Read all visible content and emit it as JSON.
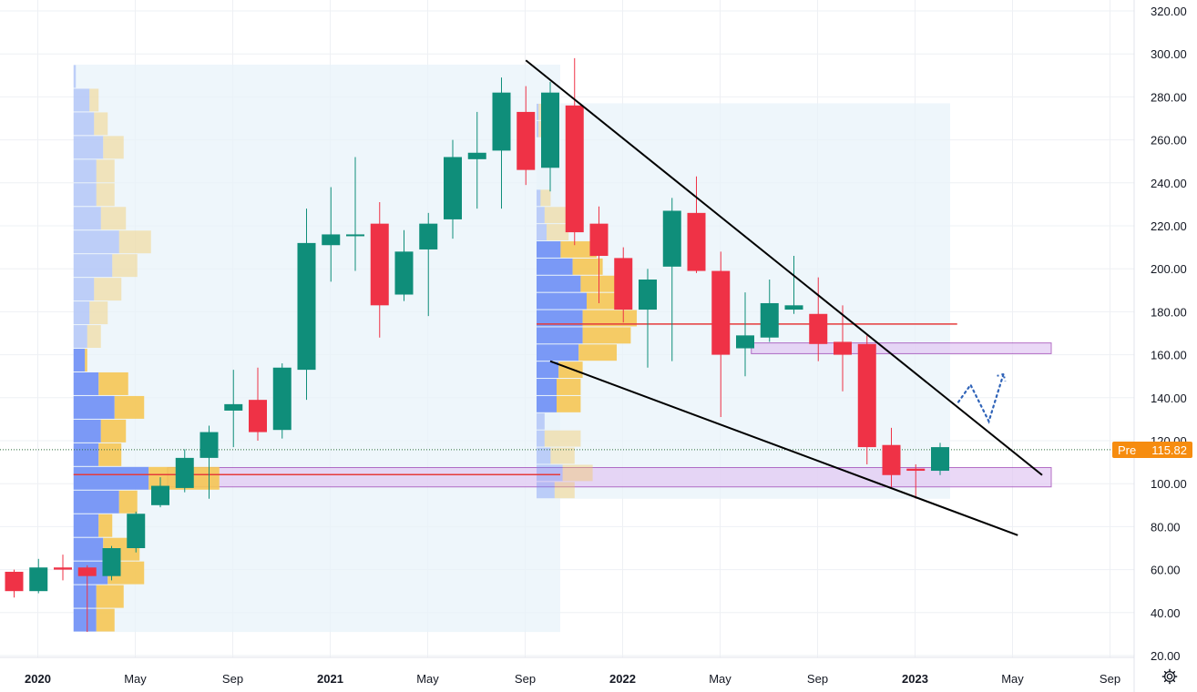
{
  "chart_data": {
    "type": "candlestick",
    "y_axis": {
      "position": "right",
      "ylim": [
        20,
        320
      ],
      "ticks": [
        "20.00",
        "40.00",
        "60.00",
        "80.00",
        "100.00",
        "120.00",
        "140.00",
        "160.00",
        "180.00",
        "200.00",
        "220.00",
        "240.00",
        "260.00",
        "280.00",
        "300.00",
        "320.00"
      ]
    },
    "x_axis": {
      "ticks": [
        {
          "label": "2020",
          "date": "2020-01",
          "year": true
        },
        {
          "label": "May",
          "date": "2020-05",
          "year": false
        },
        {
          "label": "Sep",
          "date": "2020-09",
          "year": false
        },
        {
          "label": "2021",
          "date": "2021-01",
          "year": true
        },
        {
          "label": "May",
          "date": "2021-05",
          "year": false
        },
        {
          "label": "Sep",
          "date": "2021-09",
          "year": false
        },
        {
          "label": "2022",
          "date": "2022-01",
          "year": true
        },
        {
          "label": "May",
          "date": "2022-05",
          "year": false
        },
        {
          "label": "Sep",
          "date": "2022-09",
          "year": false
        },
        {
          "label": "2023",
          "date": "2023-01",
          "year": true
        },
        {
          "label": "May",
          "date": "2023-05",
          "year": false
        },
        {
          "label": "Sep",
          "date": "2023-09",
          "year": false
        }
      ]
    },
    "candles": [
      {
        "date": "2020-01",
        "open": 59,
        "high": 60,
        "low": 47,
        "close": 50
      },
      {
        "date": "2020-02",
        "open": 50,
        "high": 65,
        "low": 49,
        "close": 61
      },
      {
        "date": "2020-03",
        "open": 61,
        "high": 67,
        "low": 55,
        "close": 60
      },
      {
        "date": "2020-04",
        "open": 61,
        "high": 62,
        "low": 31,
        "close": 57
      },
      {
        "date": "2020-05",
        "open": 57,
        "high": 71,
        "low": 55,
        "close": 70
      },
      {
        "date": "2020-06",
        "open": 70,
        "high": 87,
        "low": 68,
        "close": 86
      },
      {
        "date": "2020-07",
        "open": 90,
        "high": 103,
        "low": 89,
        "close": 99
      },
      {
        "date": "2020-08",
        "open": 98,
        "high": 116,
        "low": 96,
        "close": 112
      },
      {
        "date": "2020-09",
        "open": 112,
        "high": 127,
        "low": 93,
        "close": 124
      },
      {
        "date": "2020-10",
        "open": 134,
        "high": 153,
        "low": 117,
        "close": 137
      },
      {
        "date": "2020-11",
        "open": 139,
        "high": 154,
        "low": 120,
        "close": 124
      },
      {
        "date": "2020-12",
        "open": 125,
        "high": 156,
        "low": 121,
        "close": 154
      },
      {
        "date": "2021-01",
        "open": 153,
        "high": 228,
        "low": 139,
        "close": 212
      },
      {
        "date": "2021-02",
        "open": 211,
        "high": 238,
        "low": 194,
        "close": 216
      },
      {
        "date": "2021-03",
        "open": 216,
        "high": 252,
        "low": 199,
        "close": 216
      },
      {
        "date": "2021-04",
        "open": 221,
        "high": 231,
        "low": 168,
        "close": 183
      },
      {
        "date": "2021-05",
        "open": 188,
        "high": 218,
        "low": 185,
        "close": 208
      },
      {
        "date": "2021-06",
        "open": 209,
        "high": 226,
        "low": 178,
        "close": 221
      },
      {
        "date": "2021-07",
        "open": 223,
        "high": 260,
        "low": 214,
        "close": 252
      },
      {
        "date": "2021-08",
        "open": 251,
        "high": 273,
        "low": 228,
        "close": 254
      },
      {
        "date": "2021-09",
        "open": 255,
        "high": 289,
        "low": 228,
        "close": 282
      },
      {
        "date": "2021-10",
        "open": 273,
        "high": 285,
        "low": 239,
        "close": 246
      },
      {
        "date": "2021-11",
        "open": 247,
        "high": 287,
        "low": 236,
        "close": 282
      },
      {
        "date": "2021-12",
        "open": 276,
        "high": 298,
        "low": 211,
        "close": 217
      },
      {
        "date": "2022-01",
        "open": 221,
        "high": 229,
        "low": 184,
        "close": 206
      },
      {
        "date": "2022-02",
        "open": 205,
        "high": 210,
        "low": 175,
        "close": 181
      },
      {
        "date": "2022-03",
        "open": 181,
        "high": 200,
        "low": 154,
        "close": 195
      },
      {
        "date": "2022-04",
        "open": 201,
        "high": 233,
        "low": 157,
        "close": 227
      },
      {
        "date": "2022-05",
        "open": 226,
        "high": 243,
        "low": 198,
        "close": 199
      },
      {
        "date": "2022-06",
        "open": 199,
        "high": 208,
        "low": 131,
        "close": 160
      },
      {
        "date": "2022-07",
        "open": 163,
        "high": 189,
        "low": 150,
        "close": 169
      },
      {
        "date": "2022-08",
        "open": 168,
        "high": 195,
        "low": 166,
        "close": 184
      },
      {
        "date": "2022-09",
        "open": 181,
        "high": 206,
        "low": 179,
        "close": 183
      },
      {
        "date": "2022-10",
        "open": 179,
        "high": 196,
        "low": 157,
        "close": 165
      },
      {
        "date": "2022-11",
        "open": 166,
        "high": 183,
        "low": 143,
        "close": 160
      },
      {
        "date": "2022-12",
        "open": 165,
        "high": 169,
        "low": 109,
        "close": 117
      },
      {
        "date": "2023-01",
        "open": 118,
        "high": 126,
        "low": 98,
        "close": 104
      },
      {
        "date": "2023-02",
        "open": 107,
        "high": 109,
        "low": 93,
        "close": 106
      },
      {
        "date": "2023-03",
        "open": 106,
        "high": 119,
        "low": 104,
        "close": 117
      }
    ],
    "current_price": {
      "label": "Pre",
      "value": "115.82",
      "level": 115.82
    },
    "colors": {
      "up": "#0f8e7a",
      "down": "#ef3246",
      "up_profile": "#6e8ff5",
      "down_profile": "#f5c654",
      "range_bg": "#e8f3fa",
      "zone_fill": "#e3cbf3",
      "zone_border": "#9b3fb3",
      "poc": "#e53b3b",
      "trendline": "#000000",
      "projection": "#2f63b8",
      "price_tag": "#f68c0f",
      "grid": "#eef0f4"
    },
    "overlays": {
      "horizontal_zones": [
        {
          "low": 98.5,
          "high": 107.5
        },
        {
          "low": 160.5,
          "high": 165.5
        }
      ],
      "poc_lines": [
        {
          "price": 104.2,
          "from": "2020-04",
          "to": "2021-11"
        },
        {
          "price": 174.3,
          "from": "2021-11",
          "to": "2023-03"
        }
      ],
      "trendlines": [
        {
          "start": {
            "date": "2021-10",
            "price": 297
          },
          "end": {
            "date": "2023-07",
            "price": 104
          }
        },
        {
          "start": {
            "date": "2021-11",
            "price": 157
          },
          "end": {
            "date": "2023-06",
            "price": 76
          }
        }
      ],
      "projection_path": [
        {
          "date": "2023-03.75",
          "price": 138
        },
        {
          "date": "2023-04.25",
          "price": 146
        },
        {
          "date": "2023-05",
          "price": 129
        },
        {
          "date": "2023-05.6",
          "price": 151
        }
      ],
      "volume_profiles": [
        {
          "from": "2020-04",
          "to": "2021-11",
          "bins": [
            {
              "low": 31,
              "high": 42,
              "up": 1.0,
              "down": 0.8
            },
            {
              "low": 42,
              "high": 53,
              "up": 1.0,
              "down": 1.2
            },
            {
              "low": 53,
              "high": 64,
              "up": 1.5,
              "down": 1.6
            },
            {
              "low": 64,
              "high": 75,
              "up": 1.3,
              "down": 1.6
            },
            {
              "low": 75,
              "high": 86,
              "up": 1.1,
              "down": 0.6
            },
            {
              "low": 86,
              "high": 97,
              "up": 2.0,
              "down": 0.8
            },
            {
              "low": 97,
              "high": 108,
              "up": 3.3,
              "down": 3.1
            },
            {
              "low": 108,
              "high": 119,
              "up": 1.1,
              "down": 1.0
            },
            {
              "low": 119,
              "high": 130,
              "up": 1.2,
              "down": 1.1
            },
            {
              "low": 130,
              "high": 141,
              "up": 1.8,
              "down": 1.3
            },
            {
              "low": 141,
              "high": 152,
              "up": 1.1,
              "down": 1.3
            },
            {
              "low": 152,
              "high": 163,
              "up": 0.5,
              "down": 0.1
            },
            {
              "low": 163,
              "high": 174,
              "up": 0.6,
              "down": 0.6
            },
            {
              "low": 174,
              "high": 185,
              "up": 0.7,
              "down": 0.8
            },
            {
              "low": 185,
              "high": 196,
              "up": 0.9,
              "down": 1.2
            },
            {
              "low": 196,
              "high": 207,
              "up": 1.7,
              "down": 1.1
            },
            {
              "low": 207,
              "high": 218,
              "up": 2.0,
              "down": 1.4
            },
            {
              "low": 218,
              "high": 229,
              "up": 1.2,
              "down": 1.1
            },
            {
              "low": 229,
              "high": 240,
              "up": 1.0,
              "down": 0.8
            },
            {
              "low": 240,
              "high": 251,
              "up": 1.0,
              "down": 0.8
            },
            {
              "low": 251,
              "high": 262,
              "up": 1.3,
              "down": 0.9
            },
            {
              "low": 262,
              "high": 273,
              "up": 0.9,
              "down": 0.6
            },
            {
              "low": 273,
              "high": 284,
              "up": 0.7,
              "down": 0.4
            },
            {
              "low": 284,
              "high": 295,
              "up": 0.1,
              "down": 0.0
            }
          ]
        },
        {
          "from": "2021-11",
          "to": "2023-03",
          "bins": [
            {
              "low": 93,
              "high": 101,
              "up": 0.9,
              "down": 1.0
            },
            {
              "low": 101,
              "high": 109,
              "up": 1.3,
              "down": 1.5
            },
            {
              "low": 109,
              "high": 117,
              "up": 0.7,
              "down": 1.2
            },
            {
              "low": 117,
              "high": 125,
              "up": 0.4,
              "down": 1.8
            },
            {
              "low": 125,
              "high": 133,
              "up": 0.4,
              "down": 0.0
            },
            {
              "low": 133,
              "high": 141,
              "up": 1.0,
              "down": 1.2
            },
            {
              "low": 141,
              "high": 149,
              "up": 1.0,
              "down": 1.2
            },
            {
              "low": 149,
              "high": 157,
              "up": 1.1,
              "down": 1.2
            },
            {
              "low": 157,
              "high": 165,
              "up": 2.1,
              "down": 1.9
            },
            {
              "low": 165,
              "high": 173,
              "up": 2.3,
              "down": 2.4
            },
            {
              "low": 173,
              "high": 181,
              "up": 2.3,
              "down": 2.7
            },
            {
              "low": 181,
              "high": 189,
              "up": 2.5,
              "down": 2.2
            },
            {
              "low": 189,
              "high": 197,
              "up": 2.2,
              "down": 2.4
            },
            {
              "low": 197,
              "high": 205,
              "up": 1.8,
              "down": 1.5
            },
            {
              "low": 205,
              "high": 213,
              "up": 1.2,
              "down": 1.8
            },
            {
              "low": 213,
              "high": 221,
              "up": 0.5,
              "down": 1.1
            },
            {
              "low": 221,
              "high": 229,
              "up": 0.4,
              "down": 1.1
            },
            {
              "low": 229,
              "high": 237,
              "up": 0.2,
              "down": 0.5
            },
            {
              "low": 261,
              "high": 269,
              "up": 0.1,
              "down": 0.3
            },
            {
              "low": 269,
              "high": 277,
              "up": 0.1,
              "down": 0.2
            }
          ]
        }
      ]
    },
    "grid": true,
    "legend": "none",
    "title": "",
    "xlabel": "",
    "ylabel": ""
  },
  "icons": {
    "settings": "gear-icon"
  }
}
